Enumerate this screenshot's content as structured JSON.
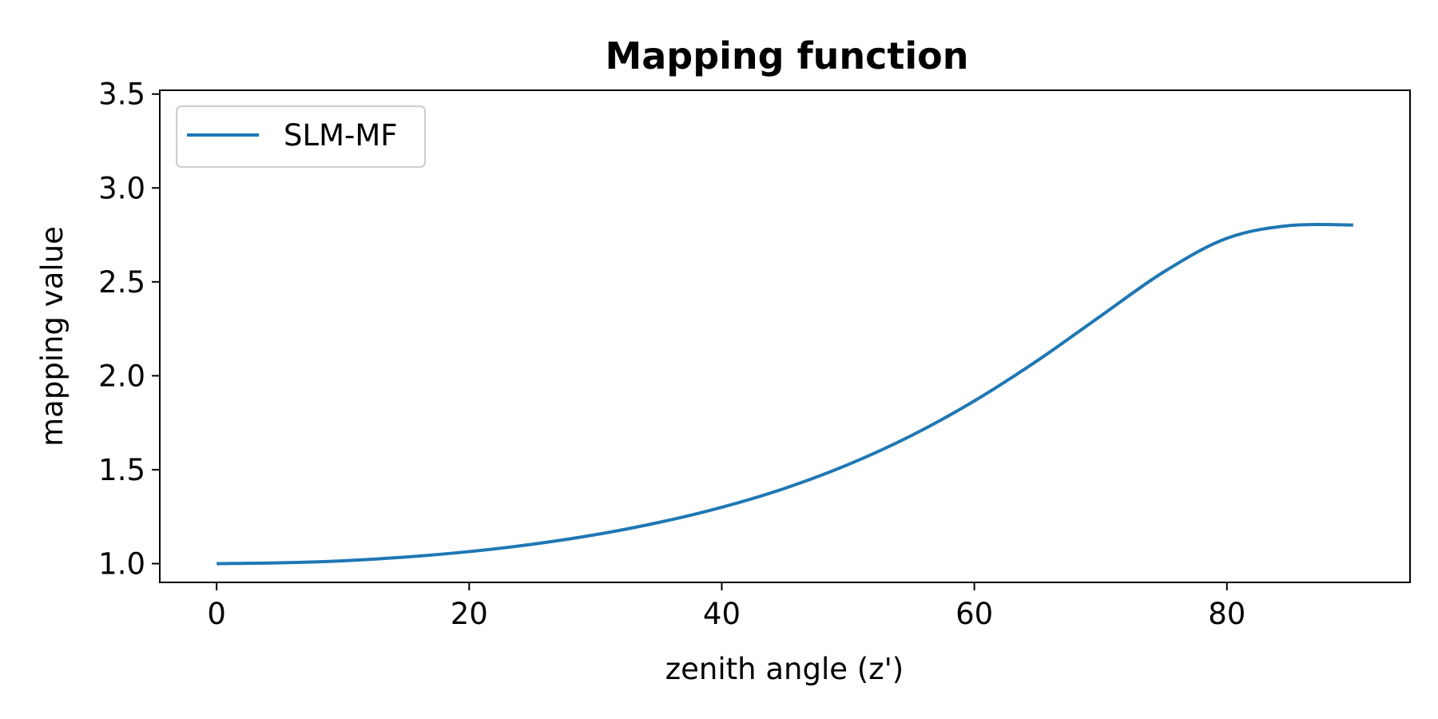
{
  "chart_data": {
    "type": "line",
    "title": "Mapping function",
    "xlabel": "zenith angle (z')",
    "ylabel": "mapping value",
    "xlim": [
      -4.5,
      94.5
    ],
    "ylim": [
      0.9,
      3.52
    ],
    "xticks": [
      0,
      20,
      40,
      60,
      80
    ],
    "yticks": [
      1.0,
      1.5,
      2.0,
      2.5,
      3.0,
      3.5
    ],
    "xtick_labels": [
      "0",
      "20",
      "40",
      "60",
      "80"
    ],
    "ytick_labels": [
      "1.0",
      "1.5",
      "2.0",
      "2.5",
      "3.0",
      "3.5"
    ],
    "grid": false,
    "legend_position": "top-left",
    "series": [
      {
        "name": "SLM-MF",
        "color": "#1f77b4",
        "x": [
          0,
          5,
          10,
          15,
          20,
          25,
          30,
          35,
          40,
          45,
          50,
          55,
          60,
          65,
          70,
          75,
          80,
          85,
          90
        ],
        "y": [
          1.0,
          1.004,
          1.015,
          1.035,
          1.064,
          1.103,
          1.154,
          1.219,
          1.3,
          1.401,
          1.527,
          1.681,
          1.866,
          2.081,
          2.318,
          2.553,
          2.732,
          2.8,
          2.803
        ]
      }
    ]
  }
}
